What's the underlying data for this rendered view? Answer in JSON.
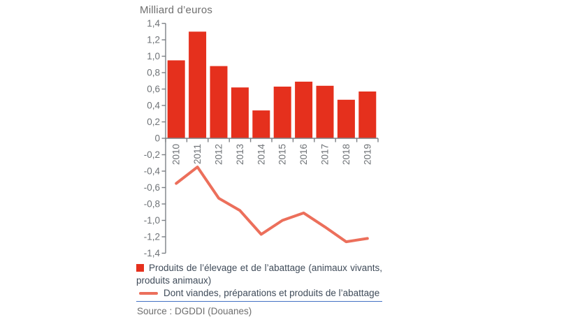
{
  "title": "Milliard d’euros",
  "source_text": "Source : DGDDI (Douanes)",
  "legend": {
    "items": [
      {
        "swatch": "red-square",
        "label": "Produits de l’élevage et de l’abattage (animaux vivants, produits animaux)"
      },
      {
        "swatch": "red-line",
        "label": "Dont viandes, préparations et produits de l’abattage"
      }
    ]
  },
  "colors": {
    "bar": "#e5301d",
    "line": "#ec6f5b",
    "axis": "#7c8085",
    "tick_label": "#6f7377",
    "legend_text": "#3f4b59",
    "separator": "#4472c4",
    "muted_text": "#6e6e6e"
  },
  "chart_data": {
    "type": "bar",
    "title": "Milliard d’euros",
    "xlabel": "",
    "ylabel": "Milliard d’euros",
    "categories": [
      "2010",
      "2011",
      "2012",
      "2013",
      "2014",
      "2015",
      "2016",
      "2017",
      "2018",
      "2019"
    ],
    "series": [
      {
        "name": "Produits de l’élevage et de l’abattage (animaux vivants, produits animaux)",
        "type": "bar",
        "values": [
          0.95,
          1.3,
          0.88,
          0.62,
          0.34,
          0.63,
          0.69,
          0.64,
          0.47,
          0.57
        ]
      },
      {
        "name": "Dont viandes, préparations et produits de l’abattage",
        "type": "line",
        "values": [
          -0.55,
          -0.35,
          -0.73,
          -0.88,
          -1.17,
          -1.0,
          -0.91,
          -1.08,
          -1.26,
          -1.22
        ]
      }
    ],
    "ylim": [
      -1.4,
      1.4
    ],
    "ytick_step": 0.2,
    "decimal_separator": ",",
    "grid": false,
    "legend_position": "bottom"
  }
}
